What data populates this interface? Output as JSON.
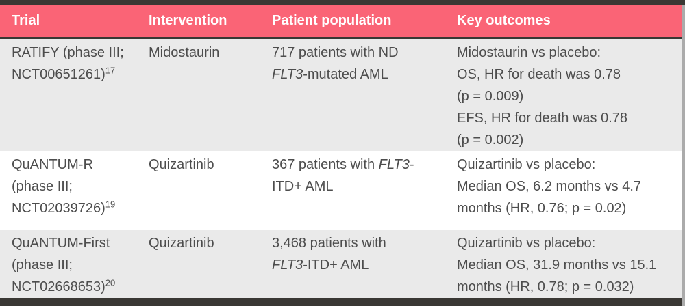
{
  "table": {
    "columns": [
      "Trial",
      "Intervention",
      "Patient population",
      "Key outcomes"
    ],
    "rows": [
      {
        "trial": "RATIFY (phase III;\nNCT00651261)",
        "trial_ref": "17",
        "intervention": "Midostaurin",
        "population": {
          "pre": "717 patients with ND\n",
          "gene": "FLT3",
          "post": "-mutated AML"
        },
        "outcomes": "Midostaurin vs placebo:\nOS, HR for death was 0.78\n(p = 0.009)\nEFS, HR for death was 0.78\n(p = 0.002)"
      },
      {
        "trial": "QuANTUM-R\n(phase III;\nNCT02039726)",
        "trial_ref": "19",
        "intervention": "Quizartinib",
        "population": {
          "pre": "367 patients with ",
          "gene": "FLT3",
          "post": "-\nITD+ AML"
        },
        "outcomes": "Quizartinib vs placebo:\nMedian OS, 6.2 months vs 4.7\nmonths (HR, 0.76; p = 0.02)"
      },
      {
        "trial": "QuANTUM-First\n(phase III;\nNCT02668653)",
        "trial_ref": "20",
        "intervention": "Quizartinib",
        "population": {
          "pre": "3,468 patients with\n",
          "gene": "FLT3",
          "post": "-ITD+ AML"
        },
        "outcomes": "Quizartinib vs placebo:\nMedian OS, 31.9 months vs 15.1\nmonths (HR, 0.78; p = 0.032)"
      }
    ],
    "colors": {
      "header_bg": "#fa6476",
      "header_text": "#ffffff",
      "row_alt_bg": "#eaeaea",
      "row_bg": "#ffffff",
      "frame_dark": "#3a3834",
      "body_text": "#4d4d4d"
    }
  }
}
